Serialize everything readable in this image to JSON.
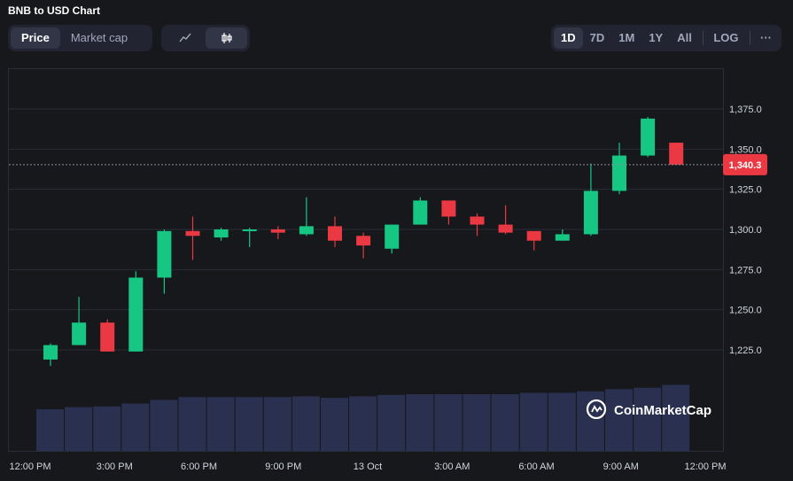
{
  "title": "BNB to USD Chart",
  "tabs": {
    "price": "Price",
    "market_cap": "Market cap"
  },
  "chart_type_buttons": {
    "line": "line-chart-icon",
    "candle": "candlestick-icon"
  },
  "range_buttons": [
    "1D",
    "7D",
    "1M",
    "1Y",
    "All"
  ],
  "log_label": "LOG",
  "more_label": "···",
  "watermark": "CoinMarketCap",
  "colors": {
    "up": "#16c784",
    "down": "#ea3943",
    "volume": "#2a3150",
    "last_price_bg": "#ea3943"
  },
  "chart_data": {
    "type": "candlestick",
    "title": "BNB to USD Chart",
    "x_ticks": [
      "12:00 PM",
      "3:00 PM",
      "6:00 PM",
      "9:00 PM",
      "13 Oct",
      "3:00 AM",
      "6:00 AM",
      "9:00 AM",
      "12:00 PM"
    ],
    "y_ticks": [
      "1,225.0",
      "1,250.0",
      "1,275.0",
      "1,300.0",
      "1,325.0",
      "1,350.0",
      "1,375.0"
    ],
    "ylim": [
      1200,
      1385
    ],
    "last_price": 1340.3,
    "last_price_label": "1,340.3",
    "candles": [
      {
        "t": "12:30 PM",
        "open": 1219,
        "high": 1229,
        "low": 1215,
        "close": 1228
      },
      {
        "t": "1:30 PM",
        "open": 1228,
        "high": 1258,
        "low": 1228,
        "close": 1242
      },
      {
        "t": "2:30 PM",
        "open": 1242,
        "high": 1244,
        "low": 1224,
        "close": 1224
      },
      {
        "t": "3:30 PM",
        "open": 1224,
        "high": 1274,
        "low": 1224,
        "close": 1270
      },
      {
        "t": "4:30 PM",
        "open": 1270,
        "high": 1300,
        "low": 1260,
        "close": 1299
      },
      {
        "t": "5:30 PM",
        "open": 1299,
        "high": 1308,
        "low": 1281,
        "close": 1296
      },
      {
        "t": "6:30 PM",
        "open": 1295,
        "high": 1301,
        "low": 1293,
        "close": 1300
      },
      {
        "t": "7:30 PM",
        "open": 1300,
        "high": 1301,
        "low": 1289,
        "close": 1300
      },
      {
        "t": "8:30 PM",
        "open": 1300,
        "high": 1302,
        "low": 1294,
        "close": 1298
      },
      {
        "t": "9:30 PM",
        "open": 1297,
        "high": 1320,
        "low": 1296,
        "close": 1302
      },
      {
        "t": "10:30 PM",
        "open": 1302,
        "high": 1308,
        "low": 1289,
        "close": 1293
      },
      {
        "t": "11:30 PM",
        "open": 1296,
        "high": 1298,
        "low": 1282,
        "close": 1290
      },
      {
        "t": "12:30 AM",
        "open": 1288,
        "high": 1303,
        "low": 1285,
        "close": 1303
      },
      {
        "t": "1:30 AM",
        "open": 1303,
        "high": 1320,
        "low": 1303,
        "close": 1318
      },
      {
        "t": "2:30 AM",
        "open": 1318,
        "high": 1318,
        "low": 1303,
        "close": 1308
      },
      {
        "t": "3:30 AM",
        "open": 1308,
        "high": 1310,
        "low": 1296,
        "close": 1303
      },
      {
        "t": "4:30 AM",
        "open": 1303,
        "high": 1315,
        "low": 1297,
        "close": 1298
      },
      {
        "t": "5:30 AM",
        "open": 1299,
        "high": 1299,
        "low": 1287,
        "close": 1293
      },
      {
        "t": "6:30 AM",
        "open": 1293,
        "high": 1300,
        "low": 1293,
        "close": 1297
      },
      {
        "t": "7:30 AM",
        "open": 1297,
        "high": 1341,
        "low": 1296,
        "close": 1324
      },
      {
        "t": "8:30 AM",
        "open": 1324,
        "high": 1354,
        "low": 1322,
        "close": 1346
      },
      {
        "t": "9:30 AM",
        "open": 1346,
        "high": 1370,
        "low": 1345,
        "close": 1369
      },
      {
        "t": "10:30 AM",
        "open": 1354,
        "high": 1354,
        "low": 1340,
        "close": 1340.3
      }
    ],
    "volume": [
      0.58,
      0.61,
      0.62,
      0.66,
      0.71,
      0.75,
      0.75,
      0.75,
      0.75,
      0.76,
      0.74,
      0.76,
      0.78,
      0.79,
      0.79,
      0.79,
      0.79,
      0.81,
      0.81,
      0.83,
      0.86,
      0.88,
      0.92
    ]
  }
}
